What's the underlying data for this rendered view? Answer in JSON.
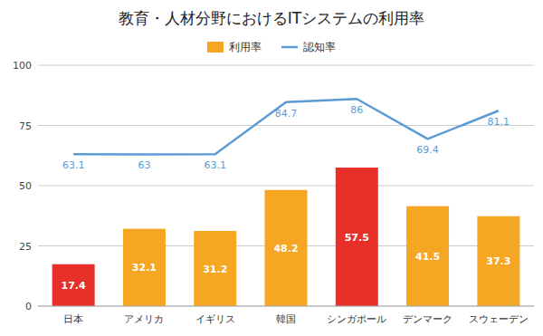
{
  "chart_data": {
    "type": "bar",
    "title": "教育・人材分野におけるITシステムの利用率",
    "categories": [
      "日本",
      "アメリカ",
      "イギリス",
      "韓国",
      "シンガポール",
      "デンマーク",
      "スウェーデン"
    ],
    "series": [
      {
        "name": "利用率",
        "type": "bar",
        "color": "#f5a623",
        "colors": [
          "#e8302a",
          "#f5a623",
          "#f5a623",
          "#f5a623",
          "#e8302a",
          "#f5a623",
          "#f5a623"
        ],
        "values": [
          17.4,
          32.1,
          31.2,
          48.2,
          57.5,
          41.5,
          37.3
        ],
        "data_labels": true
      },
      {
        "name": "認知率",
        "type": "line",
        "color": "#5b9bd5",
        "values": [
          63.1,
          63.0,
          63.1,
          84.7,
          86.0,
          69.4,
          81.1
        ],
        "value_labels": [
          "63.1",
          "63",
          "63.1",
          "84.7",
          "86",
          "69.4",
          "81.1"
        ],
        "data_labels": true
      }
    ],
    "ylim": [
      0,
      100
    ],
    "yticks": [
      0,
      25,
      50,
      75,
      100
    ],
    "grid": true,
    "legend": "top"
  }
}
